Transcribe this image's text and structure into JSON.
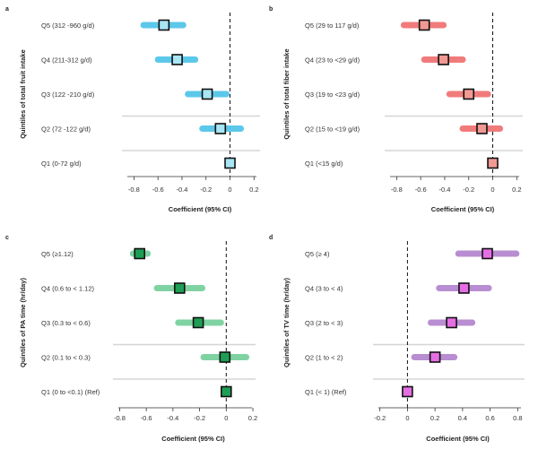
{
  "chart_data": [
    {
      "type": "forest",
      "panel_label": "a",
      "title": "",
      "ylabel": "Quintiles of total fruit intake",
      "xlabel": "Coefficient (95% CI)",
      "xlim": [
        -0.9,
        0.25
      ],
      "xticks": [
        "-0.8",
        "-0.6",
        "-0.4",
        "-0.2",
        "0",
        "0.2"
      ],
      "xtick_values": [
        -0.8,
        -0.6,
        -0.4,
        -0.2,
        0,
        0.2
      ],
      "reference_line": 0,
      "color": "#5bc8ea",
      "marker_color": "#a8e6f5",
      "rows": [
        {
          "label": "Q5 (312 -960 g/d)",
          "est": -0.55,
          "lo": -0.72,
          "hi": -0.39
        },
        {
          "label": "Q4 (211-312 g/d)",
          "est": -0.44,
          "lo": -0.6,
          "hi": -0.29
        },
        {
          "label": "Q3 (122 -210 g/d)",
          "est": -0.19,
          "lo": -0.35,
          "hi": -0.03
        },
        {
          "label": "Q2 (72 -122 g/d)",
          "est": -0.08,
          "lo": -0.23,
          "hi": 0.09
        },
        {
          "label": "Q1 (0-72 g/d)",
          "est": 0,
          "lo": 0,
          "hi": 0
        }
      ]
    },
    {
      "type": "forest",
      "panel_label": "b",
      "title": "",
      "ylabel": "Quintiles of total fiber intake",
      "xlabel": "Coefficient (95% CI)",
      "xlim": [
        -0.9,
        0.25
      ],
      "xticks": [
        "-0.8",
        "-0.6",
        "-0.4",
        "-0.2",
        "0",
        "0.2"
      ],
      "xtick_values": [
        -0.8,
        -0.6,
        -0.4,
        -0.2,
        0,
        0.2
      ],
      "reference_line": 0,
      "color": "#f07b7b",
      "marker_color": "#f19a94",
      "rows": [
        {
          "label": "Q5 (29 to 117 g/d)",
          "est": -0.57,
          "lo": -0.74,
          "hi": -0.41
        },
        {
          "label": "Q4 (23 to <29 g/d)",
          "est": -0.41,
          "lo": -0.57,
          "hi": -0.25
        },
        {
          "label": "Q3 (19 to <23 g/d)",
          "est": -0.2,
          "lo": -0.36,
          "hi": -0.04
        },
        {
          "label": "Q2 (15 to <19 g/d)",
          "est": -0.09,
          "lo": -0.25,
          "hi": 0.06
        },
        {
          "label": "Q1 (<15 g/d)",
          "est": 0,
          "lo": 0,
          "hi": 0
        }
      ]
    },
    {
      "type": "forest",
      "panel_label": "c",
      "title": "",
      "ylabel": "Quintiles of PA time (hr/day)",
      "xlabel": "Coefficient (95% CI)",
      "xlim": [
        -0.85,
        0.22
      ],
      "xticks": [
        "-0.8",
        "-0.6",
        "-0.4",
        "-0.2",
        "0",
        "0.2"
      ],
      "xtick_values": [
        -0.8,
        -0.6,
        -0.4,
        -0.2,
        0,
        0.2
      ],
      "reference_line": 0,
      "color": "#7fd3a3",
      "marker_color": "#1e9e54",
      "rows": [
        {
          "label": "Q5 (≥1.12)",
          "est": -0.65,
          "lo": -0.7,
          "hi": -0.59
        },
        {
          "label": "Q4 (0.6 to < 1.12)",
          "est": -0.35,
          "lo": -0.52,
          "hi": -0.18
        },
        {
          "label": "Q3 (0.3 to < 0.6)",
          "est": -0.21,
          "lo": -0.36,
          "hi": -0.04
        },
        {
          "label": "Q2 (0.1 to < 0.3)",
          "est": -0.01,
          "lo": -0.17,
          "hi": 0.15
        },
        {
          "label": "Q1 (0 to <0.1) (Ref)",
          "est": 0,
          "lo": 0,
          "hi": 0
        }
      ]
    },
    {
      "type": "forest",
      "panel_label": "d",
      "title": "",
      "ylabel": "Quintiles of TV time (hr/day)",
      "xlabel": "Coefficient (95% CI)",
      "xlim": [
        -0.25,
        0.85
      ],
      "xticks": [
        "-0.2",
        "0",
        "0.2",
        "0.4",
        "0.6",
        "0.8"
      ],
      "xtick_values": [
        -0.2,
        0,
        0.2,
        0.4,
        0.6,
        0.8
      ],
      "reference_line": 0,
      "color": "#b88dd1",
      "marker_color": "#e56ee4",
      "rows": [
        {
          "label": "Q5 (≥ 4)",
          "est": 0.58,
          "lo": 0.37,
          "hi": 0.79
        },
        {
          "label": "Q4 (3 to < 4)",
          "est": 0.41,
          "lo": 0.23,
          "hi": 0.59
        },
        {
          "label": "Q3 (2 to < 3)",
          "est": 0.32,
          "lo": 0.17,
          "hi": 0.47
        },
        {
          "label": "Q2 (1 to < 2)",
          "est": 0.2,
          "lo": 0.05,
          "hi": 0.34
        },
        {
          "label": "Q1 (< 1) (Ref)",
          "est": 0,
          "lo": 0,
          "hi": 0
        }
      ]
    }
  ]
}
